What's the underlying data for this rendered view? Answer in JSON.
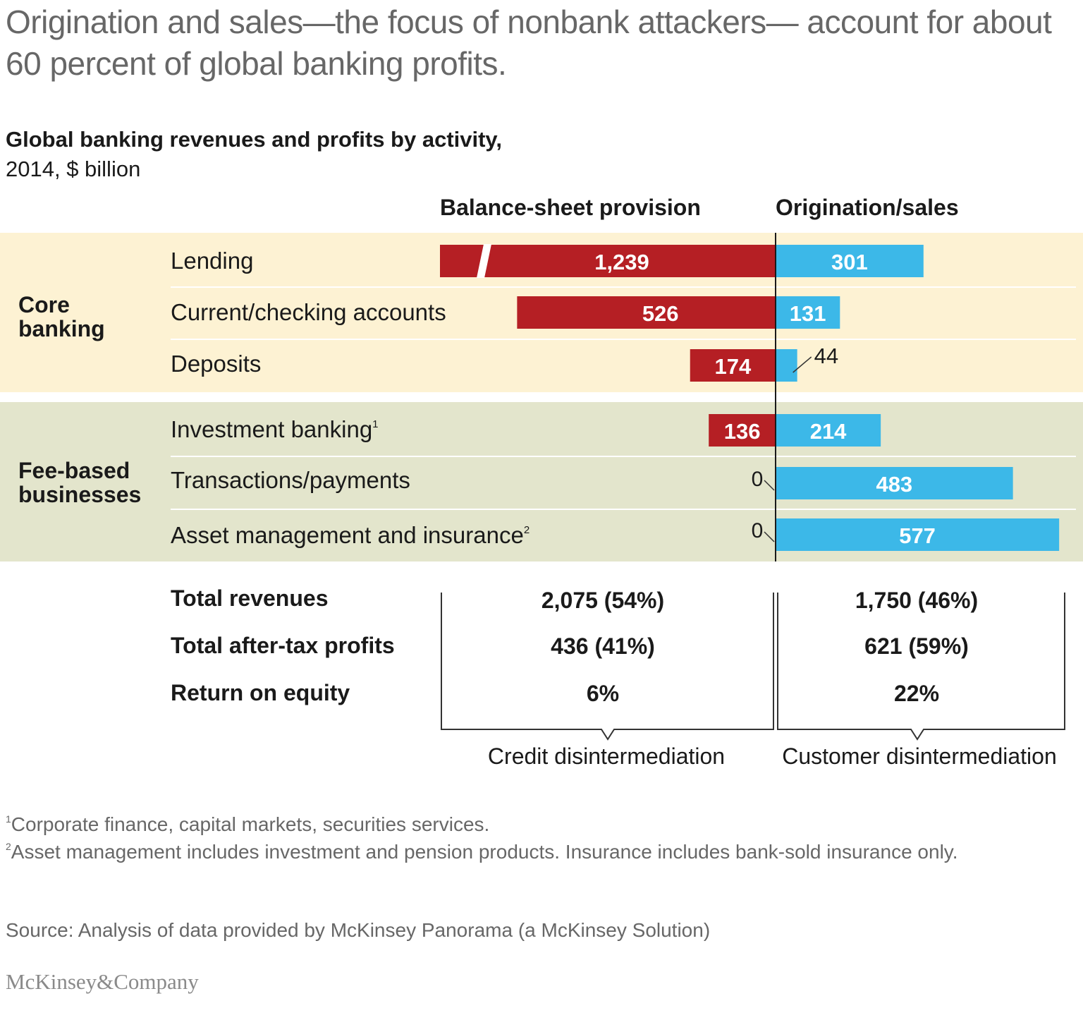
{
  "headline": "Origination and sales—the focus of nonbank attackers— account for about 60 percent of global banking profits.",
  "subtitle": "Global banking revenues and profits by activity,",
  "units": "2014, $ billion",
  "column_headers": {
    "left": "Balance-sheet provision",
    "right": "Origination/sales"
  },
  "groups": [
    {
      "label": "Core banking"
    },
    {
      "label": "Fee-based businesses"
    }
  ],
  "rows": [
    {
      "label": "Lending",
      "footnote": ""
    },
    {
      "label": "Current/checking accounts",
      "footnote": ""
    },
    {
      "label": "Deposits",
      "footnote": ""
    },
    {
      "label": "Investment banking",
      "footnote": "1"
    },
    {
      "label": "Transactions/payments",
      "footnote": ""
    },
    {
      "label": "Asset management and insurance",
      "footnote": "2"
    }
  ],
  "summary": {
    "labels": [
      "Total revenues",
      "Total after-tax profits",
      "Return on equity"
    ],
    "balance_sheet": [
      "2,075 (54%)",
      "436 (41%)",
      "6%"
    ],
    "origination": [
      "1,750 (46%)",
      "621 (59%)",
      "22%"
    ]
  },
  "disintermediation": {
    "left": "Credit disintermediation",
    "right": "Customer disintermediation"
  },
  "footnotes": [
    {
      "mark": "1",
      "text": "Corporate finance, capital markets, securities services."
    },
    {
      "mark": "2",
      "text": "Asset management includes investment and pension products. Insurance includes bank-sold insurance only."
    }
  ],
  "source": "Source: Analysis of data provided by McKinsey Panorama (a McKinsey Solution)",
  "brand": "McKinsey&Company",
  "colors": {
    "balance_sheet_bar": "#b51f24",
    "origination_bar": "#3cb8e8",
    "core_band": "#fdf2d3",
    "fee_band": "#e3e5cc",
    "headline_text": "#676767"
  },
  "chart_data": {
    "type": "bar",
    "orientation": "horizontal-diverging",
    "categories": [
      "Lending",
      "Current/checking accounts",
      "Deposits",
      "Investment banking",
      "Transactions/payments",
      "Asset management and insurance"
    ],
    "series": [
      {
        "name": "Balance-sheet provision",
        "values": [
          1239,
          526,
          174,
          136,
          0,
          0
        ],
        "labels": [
          "1,239",
          "526",
          "174",
          "136",
          "0",
          "0"
        ],
        "axis_break": [
          true,
          false,
          false,
          false,
          false,
          false
        ]
      },
      {
        "name": "Origination/sales",
        "values": [
          301,
          131,
          44,
          214,
          483,
          577
        ],
        "labels": [
          "301",
          "131",
          "44",
          "214",
          "483",
          "577"
        ]
      }
    ]
  }
}
